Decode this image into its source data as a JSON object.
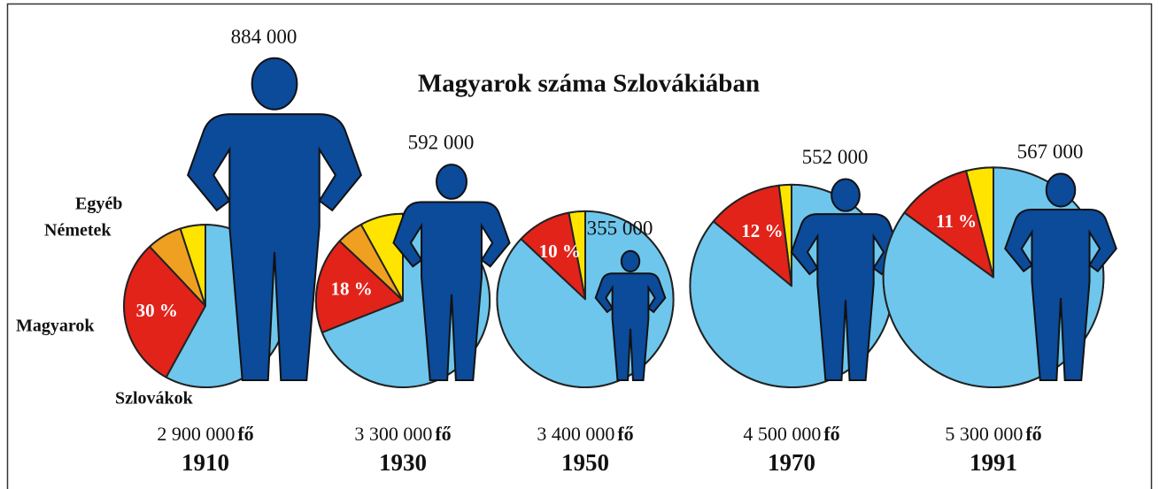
{
  "chart_data": {
    "type": "pie",
    "title": "Magyarok száma Szlovákiában",
    "unit": "fő",
    "labels": [
      "Egyéb",
      "Németek",
      "Magyarok",
      "Szlovákok"
    ],
    "colors": [
      "#ffe400",
      "#f0a020",
      "#e2231a",
      "#6ec6ec"
    ],
    "figure_color": "#0c4a9a",
    "pies": [
      {
        "year": "1910",
        "total": 2900000,
        "total_label": "2 900 000",
        "hungarians": 884000,
        "hungarians_label": "884 000",
        "values": [
          5,
          7,
          30,
          58
        ],
        "value_labels": [
          null,
          null,
          "30 %",
          null
        ]
      },
      {
        "year": "1930",
        "total": 3300000,
        "total_label": "3 300 000",
        "hungarians": 592000,
        "hungarians_label": "592 000",
        "values": [
          8,
          5,
          18,
          69
        ],
        "value_labels": [
          null,
          null,
          "18 %",
          null
        ]
      },
      {
        "year": "1950",
        "total": 3400000,
        "total_label": "3 400 000",
        "hungarians": 355000,
        "hungarians_label": "355 000",
        "values": [
          3,
          0,
          10,
          87
        ],
        "value_labels": [
          null,
          null,
          "10 %",
          null
        ]
      },
      {
        "year": "1970",
        "total": 4500000,
        "total_label": "4 500 000",
        "hungarians": 552000,
        "hungarians_label": "552 000",
        "values": [
          2,
          0,
          12,
          86
        ],
        "value_labels": [
          null,
          null,
          "12 %",
          null
        ]
      },
      {
        "year": "1991",
        "total": 5300000,
        "total_label": "5 300 000",
        "hungarians": 567000,
        "hungarians_label": "567 000",
        "values": [
          4,
          0,
          11,
          85
        ],
        "value_labels": [
          null,
          null,
          "11 %",
          null
        ]
      }
    ]
  }
}
